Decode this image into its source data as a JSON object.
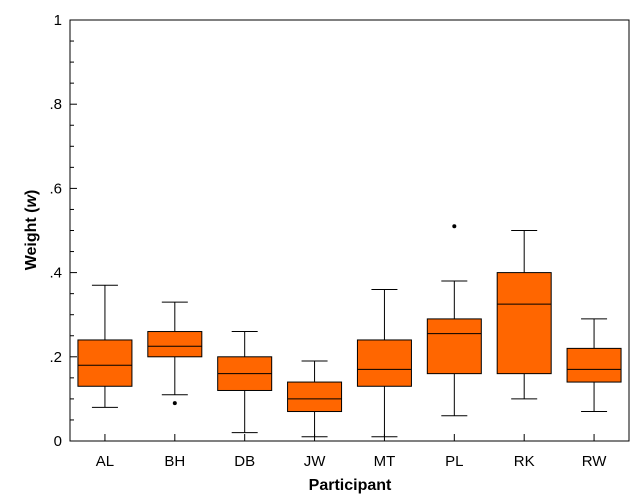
{
  "chart_data": {
    "type": "box",
    "title": "",
    "xlabel": "Participant",
    "ylabel_main": "Weight (",
    "ylabel_var": "w",
    "ylabel_end": ")",
    "ylim": [
      0,
      1
    ],
    "grid": false,
    "box_color": "#ff6600",
    "yticks": [
      {
        "value": 0,
        "label": "0"
      },
      {
        "value": 0.2,
        "label": ".2"
      },
      {
        "value": 0.4,
        "label": ".4"
      },
      {
        "value": 0.6,
        "label": ".6"
      },
      {
        "value": 0.8,
        "label": ".8"
      },
      {
        "value": 1,
        "label": "1"
      }
    ],
    "categories": [
      "AL",
      "BH",
      "DB",
      "JW",
      "MT",
      "PL",
      "RK",
      "RW"
    ],
    "boxes": [
      {
        "label": "AL",
        "whisker_low": 0.08,
        "q1": 0.13,
        "median": 0.18,
        "q3": 0.24,
        "whisker_high": 0.37,
        "outliers": []
      },
      {
        "label": "BH",
        "whisker_low": 0.11,
        "q1": 0.2,
        "median": 0.225,
        "q3": 0.26,
        "whisker_high": 0.33,
        "outliers": [
          0.09
        ]
      },
      {
        "label": "DB",
        "whisker_low": 0.02,
        "q1": 0.12,
        "median": 0.16,
        "q3": 0.2,
        "whisker_high": 0.26,
        "outliers": []
      },
      {
        "label": "JW",
        "whisker_low": 0.01,
        "q1": 0.07,
        "median": 0.1,
        "q3": 0.14,
        "whisker_high": 0.19,
        "outliers": []
      },
      {
        "label": "MT",
        "whisker_low": 0.01,
        "q1": 0.13,
        "median": 0.17,
        "q3": 0.24,
        "whisker_high": 0.36,
        "outliers": []
      },
      {
        "label": "PL",
        "whisker_low": 0.06,
        "q1": 0.16,
        "median": 0.255,
        "q3": 0.29,
        "whisker_high": 0.38,
        "outliers": [
          0.51
        ]
      },
      {
        "label": "RK",
        "whisker_low": 0.1,
        "q1": 0.16,
        "median": 0.325,
        "q3": 0.4,
        "whisker_high": 0.5,
        "outliers": []
      },
      {
        "label": "RW",
        "whisker_low": 0.07,
        "q1": 0.14,
        "median": 0.17,
        "q3": 0.22,
        "whisker_high": 0.29,
        "outliers": []
      }
    ]
  }
}
